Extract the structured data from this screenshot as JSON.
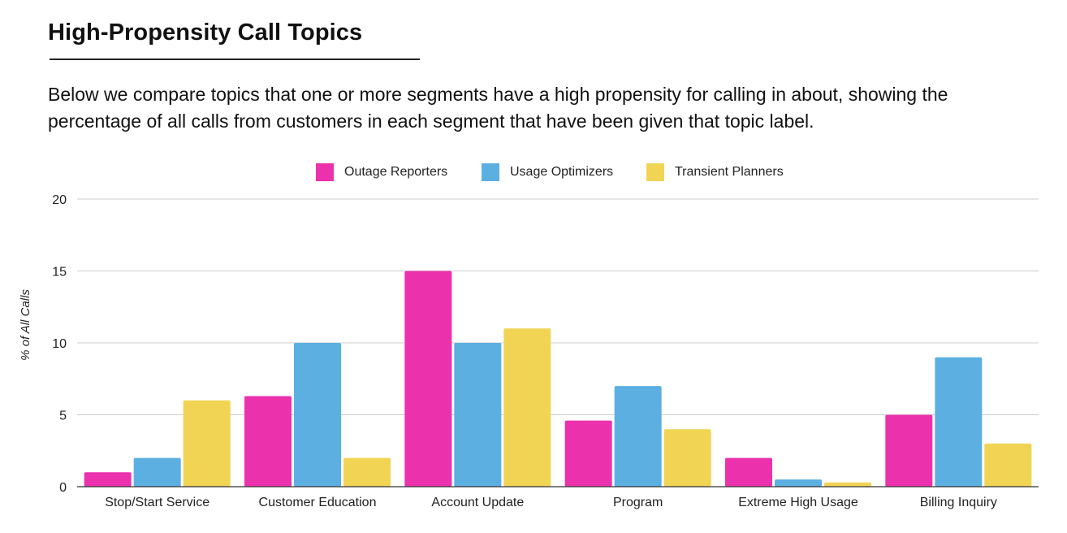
{
  "header": {
    "title": "High-Propensity Call Topics",
    "description": "Below we compare topics that one or more segments have a high propensity for calling in about, showing the percentage of all calls from customers in each segment that have been given that topic label."
  },
  "chart_data": {
    "type": "bar",
    "title": "",
    "xlabel": "",
    "ylabel": "% of All Calls",
    "ylim": [
      0,
      20
    ],
    "yticks": [
      0,
      5,
      10,
      15,
      20
    ],
    "grid": true,
    "legend_position": "top-center",
    "categories": [
      "Stop/Start Service",
      "Customer Education",
      "Account Update",
      "Program",
      "Extreme High Usage",
      "Billing Inquiry"
    ],
    "series": [
      {
        "name": "Outage Reporters",
        "color": "#ec31ad",
        "values": [
          1.0,
          6.3,
          15.0,
          4.6,
          2.0,
          5.0
        ]
      },
      {
        "name": "Usage Optimizers",
        "color": "#5cafe1",
        "values": [
          2.0,
          10.0,
          10.0,
          7.0,
          0.5,
          9.0
        ]
      },
      {
        "name": "Transient Planners",
        "color": "#f2d455",
        "values": [
          6.0,
          2.0,
          11.0,
          4.0,
          0.3,
          3.0
        ]
      }
    ]
  }
}
